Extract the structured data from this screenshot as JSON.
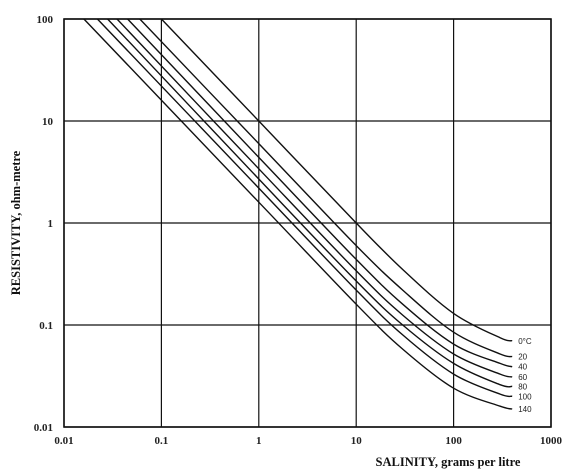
{
  "chart_data": {
    "type": "line",
    "xlabel": "SALINITY, grams per litre",
    "ylabel": "RESISTIVITY, ohm-metre",
    "x_scale": "log",
    "y_scale": "log",
    "xlim": [
      0.01,
      1000
    ],
    "ylim": [
      0.01,
      100
    ],
    "grid": true,
    "x_ticks": [
      {
        "value": 0.01,
        "label": "0.01"
      },
      {
        "value": 0.1,
        "label": "0.1"
      },
      {
        "value": 1,
        "label": "1"
      },
      {
        "value": 10,
        "label": "10"
      },
      {
        "value": 100,
        "label": "100"
      },
      {
        "value": 1000,
        "label": "1000"
      }
    ],
    "y_ticks": [
      {
        "value": 100,
        "label": "100"
      },
      {
        "value": 10,
        "label": "10"
      },
      {
        "value": 1,
        "label": "1"
      },
      {
        "value": 0.1,
        "label": "0.1"
      },
      {
        "value": 0.01,
        "label": "0.01"
      }
    ],
    "series": [
      {
        "name": "0°C",
        "x": [
          0.1,
          1,
          10,
          30,
          100,
          300,
          400
        ],
        "y": [
          100,
          10,
          1,
          0.35,
          0.13,
          0.075,
          0.07
        ]
      },
      {
        "name": "20",
        "x": [
          0.06,
          1,
          10,
          30,
          100,
          300,
          400
        ],
        "y": [
          100,
          6,
          0.6,
          0.22,
          0.085,
          0.052,
          0.049
        ]
      },
      {
        "name": "40",
        "x": [
          0.045,
          1,
          10,
          30,
          100,
          300,
          400
        ],
        "y": [
          100,
          4.4,
          0.44,
          0.16,
          0.065,
          0.042,
          0.039
        ]
      },
      {
        "name": "60",
        "x": [
          0.035,
          1,
          10,
          30,
          100,
          300,
          400
        ],
        "y": [
          100,
          3.4,
          0.34,
          0.125,
          0.052,
          0.033,
          0.031
        ]
      },
      {
        "name": "80",
        "x": [
          0.028,
          1,
          10,
          30,
          100,
          300,
          400
        ],
        "y": [
          100,
          2.7,
          0.27,
          0.1,
          0.042,
          0.026,
          0.025
        ]
      },
      {
        "name": "100",
        "x": [
          0.022,
          1,
          10,
          30,
          100,
          300,
          400
        ],
        "y": [
          100,
          2.2,
          0.22,
          0.08,
          0.033,
          0.021,
          0.02
        ]
      },
      {
        "name": "140",
        "x": [
          0.016,
          1,
          10,
          30,
          100,
          300,
          400
        ],
        "y": [
          100,
          1.6,
          0.16,
          0.058,
          0.024,
          0.016,
          0.015
        ]
      }
    ]
  }
}
